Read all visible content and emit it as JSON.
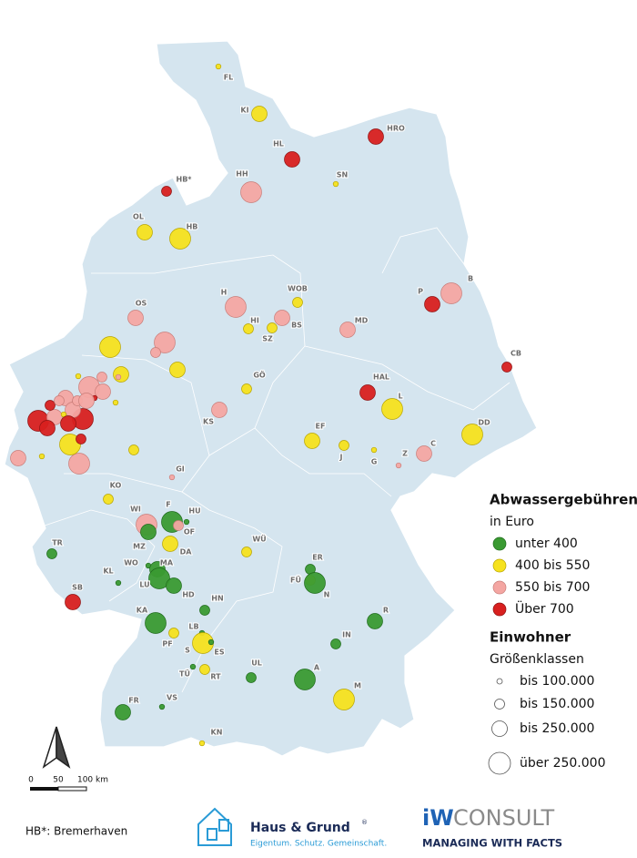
{
  "map": {
    "cities": [
      {
        "label": "FL",
        "fee_class": 1,
        "size_class": 0
      },
      {
        "label": "KI",
        "fee_class": 1,
        "size_class": 2
      },
      {
        "label": "HRO",
        "fee_class": 3,
        "size_class": 2
      },
      {
        "label": "HL",
        "fee_class": 3,
        "size_class": 2
      },
      {
        "label": "SN",
        "fee_class": 1,
        "size_class": 0
      },
      {
        "label": "HB*",
        "fee_class": 3,
        "size_class": 1
      },
      {
        "label": "HH",
        "fee_class": 2,
        "size_class": 3
      },
      {
        "label": "OL",
        "fee_class": 1,
        "size_class": 2
      },
      {
        "label": "HB",
        "fee_class": 1,
        "size_class": 3
      },
      {
        "label": "B",
        "fee_class": 2,
        "size_class": 3
      },
      {
        "label": "P",
        "fee_class": 3,
        "size_class": 2
      },
      {
        "label": "H",
        "fee_class": 2,
        "size_class": 3
      },
      {
        "label": "WOB",
        "fee_class": 1,
        "size_class": 1
      },
      {
        "label": "HI",
        "fee_class": 1,
        "size_class": 1
      },
      {
        "label": "BS",
        "fee_class": 2,
        "size_class": 2
      },
      {
        "label": "SZ",
        "fee_class": 1,
        "size_class": 1
      },
      {
        "label": "MD",
        "fee_class": 2,
        "size_class": 2
      },
      {
        "label": "OS",
        "fee_class": 2,
        "size_class": 2
      },
      {
        "label": "CB",
        "fee_class": 3,
        "size_class": 1
      },
      {
        "label": "HAL",
        "fee_class": 3,
        "size_class": 2
      },
      {
        "label": "L",
        "fee_class": 1,
        "size_class": 3
      },
      {
        "label": "GÖ",
        "fee_class": 1,
        "size_class": 1
      },
      {
        "label": "KS",
        "fee_class": 2,
        "size_class": 2
      },
      {
        "label": "DD",
        "fee_class": 1,
        "size_class": 3
      },
      {
        "label": "EF",
        "fee_class": 1,
        "size_class": 2
      },
      {
        "label": "J",
        "fee_class": 1,
        "size_class": 1
      },
      {
        "label": "G",
        "fee_class": 1,
        "size_class": 0
      },
      {
        "label": "Z",
        "fee_class": 2,
        "size_class": 0
      },
      {
        "label": "C",
        "fee_class": 2,
        "size_class": 2
      },
      {
        "label": "GI",
        "fee_class": 2,
        "size_class": 0
      },
      {
        "label": "KO",
        "fee_class": 1,
        "size_class": 1
      },
      {
        "label": "F",
        "fee_class": 0,
        "size_class": 3
      },
      {
        "label": "HU",
        "fee_class": 0,
        "size_class": 0
      },
      {
        "label": "WI",
        "fee_class": 2,
        "size_class": 3
      },
      {
        "label": "OF",
        "fee_class": 2,
        "size_class": 1
      },
      {
        "label": "MZ",
        "fee_class": 0,
        "size_class": 2
      },
      {
        "label": "DA",
        "fee_class": 1,
        "size_class": 2
      },
      {
        "label": "WÜ",
        "fee_class": 1,
        "size_class": 1
      },
      {
        "label": "ER",
        "fee_class": 0,
        "size_class": 1
      },
      {
        "label": "FÜ",
        "fee_class": 1,
        "size_class": 1
      },
      {
        "label": "N",
        "fee_class": 0,
        "size_class": 3
      },
      {
        "label": "TR",
        "fee_class": 0,
        "size_class": 1
      },
      {
        "label": "WO",
        "fee_class": 0,
        "size_class": 0
      },
      {
        "label": "MA",
        "fee_class": 0,
        "size_class": 2
      },
      {
        "label": "LU",
        "fee_class": 0,
        "size_class": 3
      },
      {
        "label": "HD",
        "fee_class": 0,
        "size_class": 2
      },
      {
        "label": "KL",
        "fee_class": 0,
        "size_class": 0
      },
      {
        "label": "SB",
        "fee_class": 3,
        "size_class": 2
      },
      {
        "label": "HN",
        "fee_class": 0,
        "size_class": 1
      },
      {
        "label": "KA",
        "fee_class": 0,
        "size_class": 3
      },
      {
        "label": "R",
        "fee_class": 0,
        "size_class": 2
      },
      {
        "label": "LB",
        "fee_class": 0,
        "size_class": 0
      },
      {
        "label": "PF",
        "fee_class": 1,
        "size_class": 1
      },
      {
        "label": "S",
        "fee_class": 1,
        "size_class": 3
      },
      {
        "label": "ES",
        "fee_class": 0,
        "size_class": 0
      },
      {
        "label": "IN",
        "fee_class": 0,
        "size_class": 1
      },
      {
        "label": "TÜ",
        "fee_class": 0,
        "size_class": 0
      },
      {
        "label": "RT",
        "fee_class": 1,
        "size_class": 1
      },
      {
        "label": "UL",
        "fee_class": 0,
        "size_class": 1
      },
      {
        "label": "A",
        "fee_class": 0,
        "size_class": 3
      },
      {
        "label": "M",
        "fee_class": 1,
        "size_class": 3
      },
      {
        "label": "FR",
        "fee_class": 0,
        "size_class": 2
      },
      {
        "label": "VS",
        "fee_class": 0,
        "size_class": 0
      },
      {
        "label": "KN",
        "fee_class": 1,
        "size_class": 0
      },
      {
        "label": null,
        "fee_class": 1,
        "size_class": 3
      },
      {
        "label": null,
        "fee_class": 2,
        "size_class": 3
      },
      {
        "label": null,
        "fee_class": 2,
        "size_class": 1
      },
      {
        "label": null,
        "fee_class": 1,
        "size_class": 2
      },
      {
        "label": null,
        "fee_class": 1,
        "size_class": 2
      },
      {
        "label": null,
        "fee_class": 1,
        "size_class": 1
      },
      {
        "label": null,
        "fee_class": 1,
        "size_class": 0
      },
      {
        "label": null,
        "fee_class": 2,
        "size_class": 2
      },
      {
        "label": null,
        "fee_class": 2,
        "size_class": 3
      },
      {
        "label": null,
        "fee_class": 1,
        "size_class": 3
      },
      {
        "label": null,
        "fee_class": 3,
        "size_class": 1
      },
      {
        "label": null,
        "fee_class": 3,
        "size_class": 3
      },
      {
        "label": null,
        "fee_class": 2,
        "size_class": 2
      },
      {
        "label": null,
        "fee_class": 3,
        "size_class": 3
      },
      {
        "label": null,
        "fee_class": 3,
        "size_class": 1
      },
      {
        "label": null,
        "fee_class": 2,
        "size_class": 2
      },
      {
        "label": null,
        "fee_class": 2,
        "size_class": 3
      },
      {
        "label": null,
        "fee_class": 2,
        "size_class": 2
      },
      {
        "label": null,
        "fee_class": 2,
        "size_class": 1
      },
      {
        "label": null,
        "fee_class": 1,
        "size_class": 0
      },
      {
        "label": null,
        "fee_class": 1,
        "size_class": 0
      },
      {
        "label": null,
        "fee_class": 3,
        "size_class": 0
      },
      {
        "label": null,
        "fee_class": 2,
        "size_class": 2
      },
      {
        "label": null,
        "fee_class": 2,
        "size_class": 1
      },
      {
        "label": null,
        "fee_class": 3,
        "size_class": 2
      },
      {
        "label": null,
        "fee_class": 1,
        "size_class": 0
      },
      {
        "label": null,
        "fee_class": 2,
        "size_class": 1
      },
      {
        "label": null,
        "fee_class": 2,
        "size_class": 2
      },
      {
        "label": null,
        "fee_class": 3,
        "size_class": 2
      },
      {
        "label": null,
        "fee_class": 2,
        "size_class": 0
      }
    ],
    "legend": {
      "title": "Abwassergebühren",
      "unit": "in Euro",
      "fee_classes": [
        {
          "label": "unter 400",
          "color": "#3a9a32"
        },
        {
          "label": "400 bis 550",
          "color": "#f6e21e"
        },
        {
          "label": "550 bis 700",
          "color": "#f4a6a2"
        },
        {
          "label": "Über 700",
          "color": "#d8201f"
        }
      ],
      "size_title": "Einwohner",
      "size_subtitle": "Größenklassen",
      "size_classes": [
        "bis 100.000",
        "bis 150.000",
        "bis 250.000",
        "über 250.000"
      ]
    },
    "scale": [
      "0",
      "50",
      "100 km"
    ],
    "footnote": "HB*: Bremerhaven",
    "logos": {
      "hg_name": "Haus & Grund",
      "hg_mark": "®",
      "hg_tagline": "Eigentum. Schutz. Gemeinschaft.",
      "iw_prefix": "iW",
      "iw_name": "CONSULT",
      "iw_tagline": "MANAGING WITH FACTS"
    }
  }
}
